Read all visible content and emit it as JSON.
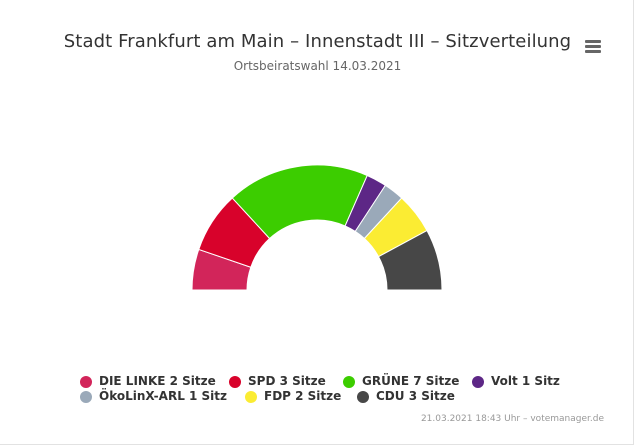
{
  "menu": {
    "icon": "hamburger-menu-icon"
  },
  "credits": "21.03.2021 18:43 Uhr – votemanager.de",
  "chart_data": {
    "type": "pie",
    "variant": "semicircle-parliament",
    "title": "Stadt Frankfurt am Main – Innenstadt III – Sitzverteilung",
    "subtitle": "Ortsbeiratswahl 14.03.2021",
    "unit": "Sitze",
    "series": [
      {
        "name": "DIE LINKE",
        "value": 2,
        "color": "#d2255a",
        "legend": "DIE LINKE 2 Sitze"
      },
      {
        "name": "SPD",
        "value": 3,
        "color": "#d8022b",
        "legend": "SPD 3 Sitze"
      },
      {
        "name": "GRÜNE",
        "value": 7,
        "color": "#3ccd00",
        "legend": "GRÜNE 7 Sitze"
      },
      {
        "name": "Volt",
        "value": 1,
        "color": "#5d2786",
        "legend": "Volt 1 Sitz"
      },
      {
        "name": "ÖkoLinX-ARL",
        "value": 1,
        "color": "#9aa9b9",
        "legend": "ÖkoLinX-ARL 1 Sitz"
      },
      {
        "name": "FDP",
        "value": 2,
        "color": "#fbec33",
        "legend": "FDP 2 Sitze"
      },
      {
        "name": "CDU",
        "value": 3,
        "color": "#474747",
        "legend": "CDU 3 Sitze"
      }
    ],
    "legend_position": "bottom"
  }
}
